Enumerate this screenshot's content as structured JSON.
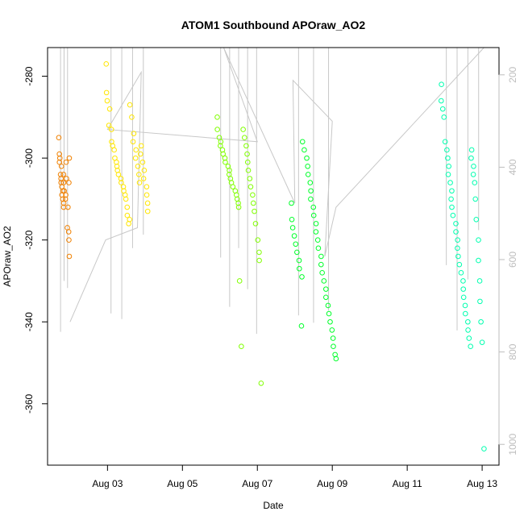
{
  "chart_data": {
    "type": "scatter",
    "title": "ATOM1 Southbound APOraw_AO2",
    "xlabel": "Date",
    "ylabel": "APOraw_AO2",
    "x_tick_labels": [
      "Aug 03",
      "Aug 05",
      "Aug 07",
      "Aug 09",
      "Aug 11",
      "Aug 13"
    ],
    "x_ticks_day": [
      3,
      5,
      7,
      9,
      11,
      13
    ],
    "xlim_day": [
      1.4,
      13.45
    ],
    "ylim": [
      -375,
      -273
    ],
    "y_ticks": [
      -280,
      -300,
      -320,
      -340,
      -360
    ],
    "right_axis": {
      "ticks": [
        200,
        400,
        600,
        800,
        1000
      ],
      "lim": [
        141,
        1045
      ],
      "color": "#bdbdbd"
    },
    "secondary_line_color": "#c8c8c8",
    "series": [
      {
        "color": "#f08000",
        "day_range": [
          1.7,
          1.98
        ],
        "values": [
          -295,
          -299,
          -300,
          -301,
          -302,
          -304,
          -305,
          -306,
          -307,
          -308,
          -309,
          -310,
          -311,
          -312,
          -304,
          -306,
          -308,
          -310,
          -301,
          -305,
          -309,
          -312,
          -317,
          -318,
          -320,
          -324,
          -300,
          -306
        ]
      },
      {
        "color": "#ffe600",
        "day_range": [
          2.95,
          4.1
        ],
        "values": [
          -277,
          -284,
          -286,
          -288,
          -292,
          -293,
          -296,
          -297,
          -298,
          -300,
          -301,
          -302,
          -303,
          -304,
          -305,
          -306,
          -307,
          -308,
          -309,
          -310,
          -312,
          -314,
          -315,
          -316,
          -287,
          -290,
          -294,
          -296,
          -298,
          -300,
          -302,
          -304,
          -306,
          -297,
          -299,
          -301,
          -303,
          -305,
          -307,
          -309,
          -311,
          -313
        ]
      },
      {
        "color": "#80ff00",
        "day_range": [
          5.9,
          7.1
        ],
        "values": [
          -290,
          -293,
          -295,
          -296,
          -297,
          -298,
          -299,
          -300,
          -301,
          -302,
          -303,
          -304,
          -305,
          -306,
          -307,
          -308,
          -309,
          -310,
          -311,
          -312,
          -330,
          -346,
          -293,
          -295,
          -297,
          -299,
          -301,
          -303,
          -305,
          -307,
          -309,
          -311,
          -313,
          -316,
          -320,
          -323,
          -325,
          -355
        ]
      },
      {
        "color": "#00ff2a",
        "day_range": [
          7.9,
          9.1
        ],
        "values": [
          -311,
          -315,
          -317,
          -319,
          -321,
          -323,
          -325,
          -327,
          -329,
          -341,
          -296,
          -298,
          -300,
          -302,
          -304,
          -306,
          -308,
          -310,
          -312,
          -314,
          -316,
          -318,
          -320,
          -322,
          -324,
          -326,
          -328,
          -330,
          -332,
          -334,
          -336,
          -338,
          -340,
          -342,
          -344,
          -346,
          -348,
          -349
        ]
      },
      {
        "color": "#00ffaf",
        "day_range": [
          11.9,
          13.05
        ],
        "values": [
          -282,
          -286,
          -288,
          -290,
          -296,
          -298,
          -300,
          -302,
          -304,
          -306,
          -308,
          -310,
          -312,
          -314,
          -316,
          -318,
          -320,
          -322,
          -324,
          -326,
          -328,
          -330,
          -332,
          -334,
          -336,
          -338,
          -340,
          -342,
          -344,
          -346,
          -298,
          -300,
          -302,
          -304,
          -306,
          -310,
          -315,
          -320,
          -325,
          -330,
          -335,
          -340,
          -345,
          -371
        ]
      }
    ]
  }
}
